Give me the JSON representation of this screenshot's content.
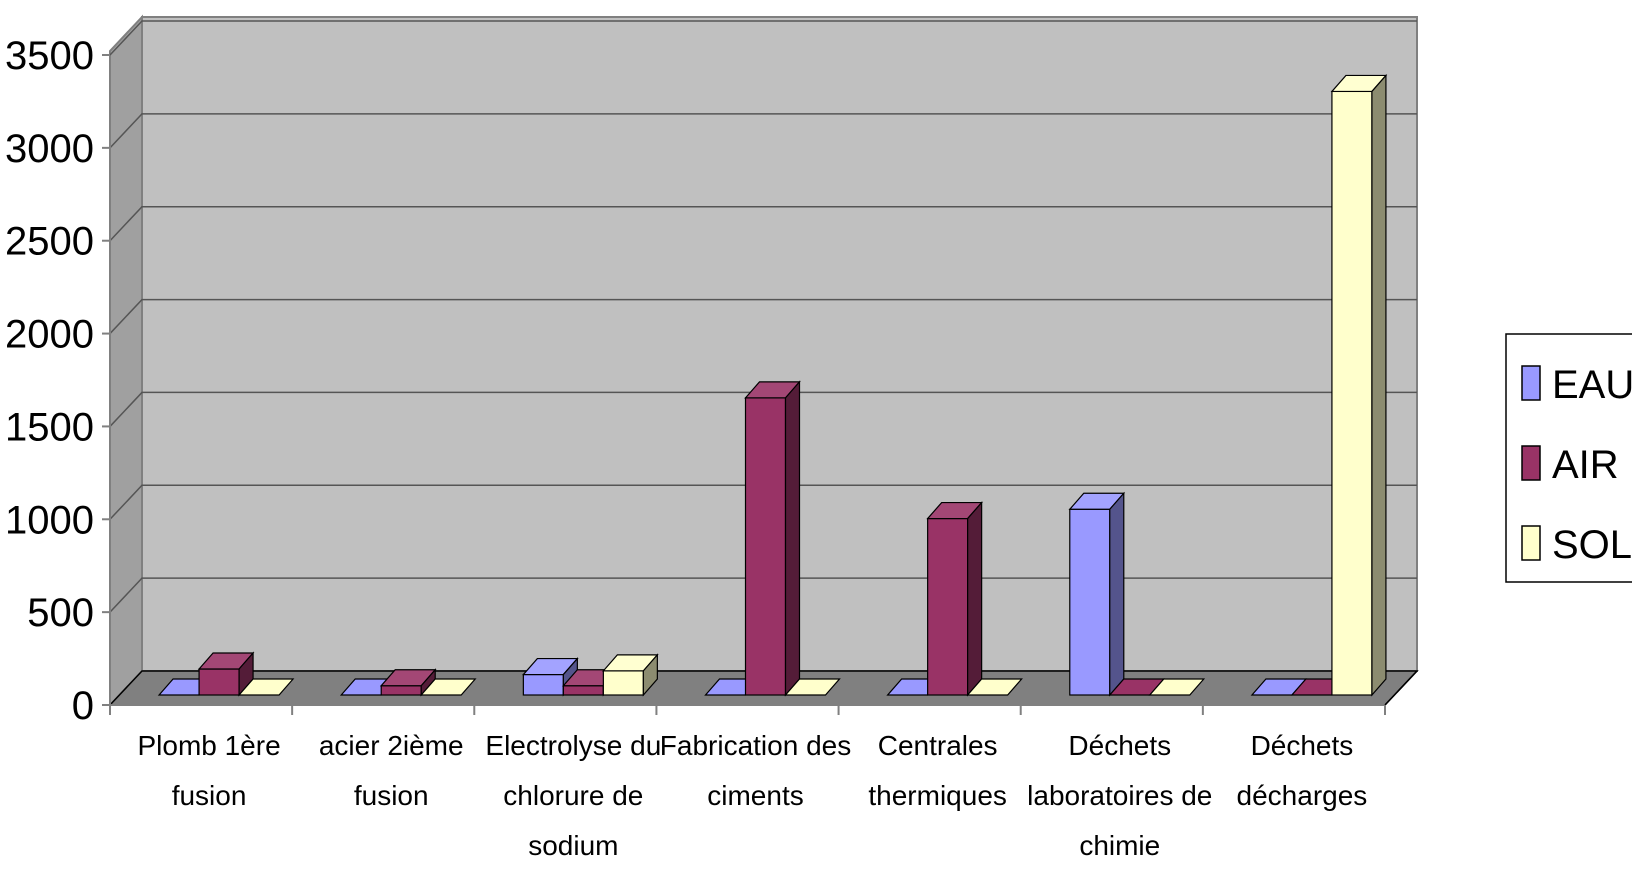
{
  "chart_data": {
    "type": "bar",
    "title": "",
    "xlabel": "",
    "ylabel": "",
    "ylim": [
      0,
      3500
    ],
    "yticks": [
      0,
      500,
      1000,
      1500,
      2000,
      2500,
      3000,
      3500
    ],
    "grid": true,
    "three_d": true,
    "legend_position": "right",
    "categories": [
      [
        "Plomb 1ère",
        "fusion"
      ],
      [
        "acier 2ième",
        "fusion"
      ],
      [
        "Electrolyse du",
        "chlorure de",
        "sodium"
      ],
      [
        "Fabrication des",
        "ciments"
      ],
      [
        "Centrales",
        "thermiques"
      ],
      [
        "Déchets",
        "laboratoires de",
        "chimie"
      ],
      [
        "Déchets",
        "décharges"
      ]
    ],
    "series": [
      {
        "name": "EAU",
        "color": "#9999ff",
        "values": [
          0,
          0,
          110,
          0,
          0,
          1000,
          0
        ]
      },
      {
        "name": "AIR",
        "color": "#993366",
        "values": [
          140,
          50,
          50,
          1600,
          950,
          0,
          0
        ]
      },
      {
        "name": "SOL",
        "color": "#ffffcc",
        "values": [
          0,
          0,
          130,
          0,
          0,
          0,
          3250
        ]
      }
    ],
    "colors": {
      "wall": "#c0c0c0",
      "floor": "#808080",
      "side_wall": "#a0a0a0",
      "gridline": "#555555"
    }
  }
}
